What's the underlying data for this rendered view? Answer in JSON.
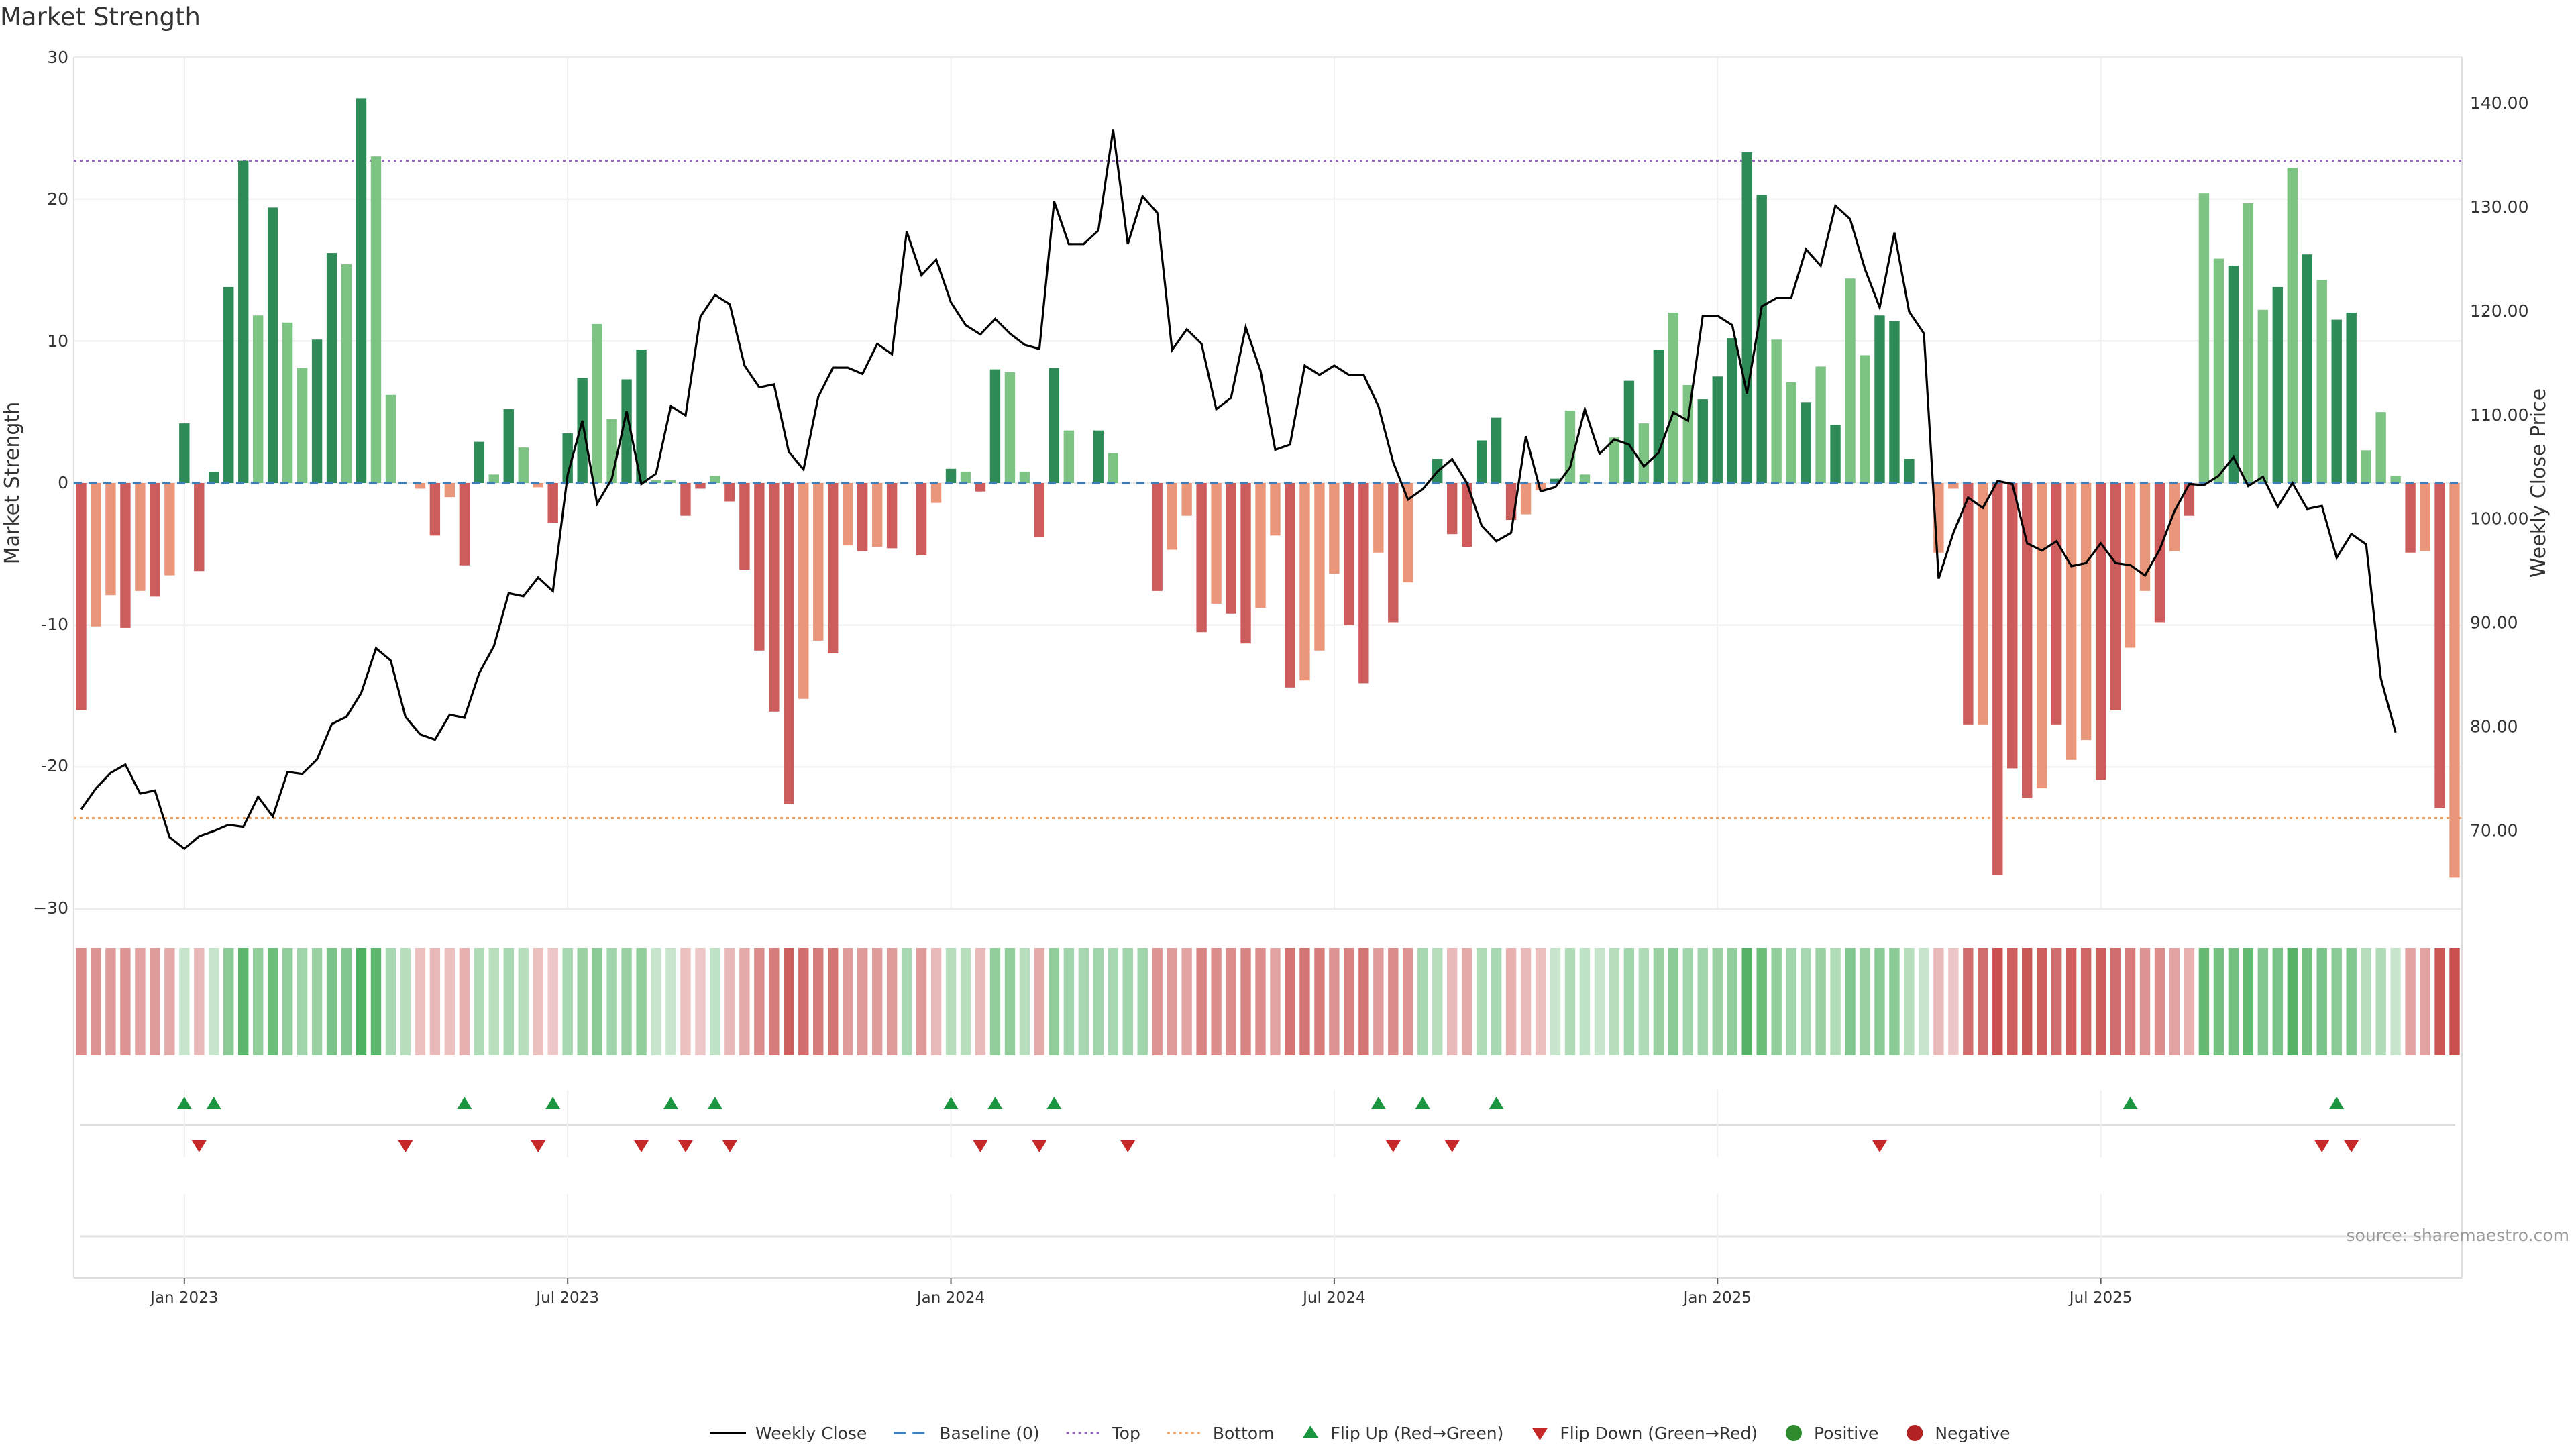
{
  "chart_data": {
    "type": "bar",
    "title": "Market Strength",
    "ylabel": "Market Strength",
    "y2label": "Weekly Close Price",
    "source": "source: sharemaestro.com",
    "ylim": [
      -30,
      30
    ],
    "y2lim": [
      62.4,
      144.4
    ],
    "yticks": [
      "30",
      "20",
      "10",
      "0",
      "−30"
    ],
    "yticks_neg": [
      "-10",
      "-20"
    ],
    "y2ticks": [
      "140.00",
      "130.00",
      "120.00",
      "110.00",
      "100.00",
      "90.00",
      "80.00",
      "70.00"
    ],
    "y2tick_values": [
      140,
      130,
      120,
      110,
      100,
      90,
      80,
      70
    ],
    "x_start_index_note_free": true,
    "x_ticks": [
      {
        "label": "Jan 2023",
        "index": 7
      },
      {
        "label": "Jul 2023",
        "index": 33
      },
      {
        "label": "Jan 2024",
        "index": 59
      },
      {
        "label": "Jul 2024",
        "index": 85
      },
      {
        "label": "Jan 2025",
        "index": 111
      },
      {
        "label": "Jul 2025",
        "index": 137
      }
    ],
    "top_line": 22.7,
    "bottom_line": -23.6,
    "grid": true,
    "legend_position": "bottom-center",
    "strength": [
      -16,
      -10.1,
      -7.9,
      -10.2,
      -7.6,
      -8,
      -6.5,
      4.2,
      -6.2,
      0.8,
      13.8,
      22.7,
      11.8,
      19.4,
      11.3,
      8.1,
      10.1,
      16.2,
      15.4,
      27.1,
      23,
      6.2,
      0,
      -0.4,
      -3.7,
      -1,
      -5.8,
      2.9,
      0.6,
      5.2,
      2.5,
      -0.3,
      -2.8,
      3.5,
      7.4,
      11.2,
      4.5,
      7.3,
      9.4,
      0.2,
      0.2,
      -2.3,
      -0.4,
      0.5,
      -1.3,
      -6.1,
      -11.8,
      -16.1,
      -22.6,
      -15.2,
      -11.1,
      -12,
      -4.4,
      -4.8,
      -4.5,
      -4.6,
      0,
      -5.1,
      -1.4,
      1,
      0.8,
      -0.6,
      8,
      7.8,
      0.8,
      -3.8,
      8.1,
      3.7,
      0,
      3.7,
      2.1,
      0,
      0,
      -7.6,
      -4.7,
      -2.3,
      -10.5,
      -8.5,
      -9.2,
      -11.3,
      -8.8,
      -3.7,
      -14.4,
      -13.9,
      -11.8,
      -6.4,
      -10,
      -14.1,
      -4.9,
      -9.8,
      -7,
      0,
      1.7,
      -3.6,
      -4.5,
      3,
      4.6,
      -2.6,
      -2.2,
      -0.5,
      0.3,
      5.1,
      0.6,
      0,
      3.2,
      7.2,
      4.2,
      9.4,
      12,
      6.9,
      5.9,
      7.5,
      10.2,
      23.3,
      20.3,
      10.1,
      7.1,
      5.7,
      8.2,
      4.1,
      14.4,
      9,
      11.8,
      11.4,
      1.7,
      0,
      -4.9,
      -0.4,
      -17,
      -17,
      -27.6,
      -20.1,
      -22.2,
      -21.5,
      -17,
      -19.5,
      -18.1,
      -20.9,
      -16,
      -11.6,
      -7.6,
      -9.8,
      -4.8,
      -2.3,
      20.4,
      15.8,
      15.3,
      19.7,
      12.2,
      13.8,
      22.2,
      16.1,
      14.3,
      11.5,
      12,
      2.3,
      5,
      0.5,
      -4.9,
      -4.8,
      -22.9,
      -27.8
    ],
    "bar_shades": [
      "dark",
      "light",
      "light",
      "dark",
      "light",
      "dark",
      "light",
      "dark",
      "dark",
      "dark",
      "dark",
      "dark",
      "light",
      "dark",
      "light",
      "light",
      "dark",
      "dark",
      "light",
      "dark",
      "light",
      "light",
      "light",
      "light",
      "dark",
      "light",
      "dark",
      "dark",
      "light",
      "dark",
      "light",
      "light",
      "dark",
      "dark",
      "dark",
      "light",
      "light",
      "dark",
      "dark",
      "light",
      "light",
      "dark",
      "dark",
      "light",
      "dark",
      "dark",
      "dark",
      "dark",
      "dark",
      "light",
      "light",
      "dark",
      "light",
      "dark",
      "light",
      "dark",
      "light",
      "dark",
      "light",
      "dark",
      "light",
      "dark",
      "dark",
      "light",
      "light",
      "dark",
      "dark",
      "light",
      "light",
      "dark",
      "light",
      "light",
      "light",
      "dark",
      "light",
      "light",
      "dark",
      "light",
      "dark",
      "dark",
      "light",
      "light",
      "dark",
      "light",
      "light",
      "light",
      "dark",
      "dark",
      "light",
      "dark",
      "light",
      "light",
      "dark",
      "dark",
      "dark",
      "dark",
      "dark",
      "dark",
      "light",
      "light",
      "dark",
      "light",
      "light",
      "dark",
      "light",
      "dark",
      "light",
      "dark",
      "light",
      "light",
      "dark",
      "dark",
      "dark",
      "dark",
      "dark",
      "light",
      "light",
      "dark",
      "light",
      "dark",
      "light",
      "light",
      "dark",
      "dark",
      "dark",
      "light",
      "light",
      "light",
      "dark",
      "light",
      "dark",
      "dark",
      "dark",
      "light",
      "dark",
      "light",
      "light",
      "dark",
      "dark",
      "light",
      "light",
      "dark",
      "light",
      "dark",
      "light",
      "light",
      "dark",
      "light",
      "light",
      "dark",
      "light",
      "dark",
      "light",
      "dark",
      "dark",
      "light",
      "light",
      "light",
      "dark",
      "light",
      "dark",
      "light",
      "dark",
      "dark",
      "dark",
      "dark"
    ],
    "heat_level": [
      0.6,
      0.55,
      0.5,
      0.55,
      0.45,
      0.5,
      0.4,
      0.2,
      0.3,
      0.2,
      0.6,
      0.9,
      0.55,
      0.8,
      0.55,
      0.45,
      0.5,
      0.7,
      0.65,
      1,
      0.9,
      0.4,
      0.3,
      0.25,
      0.3,
      0.25,
      0.35,
      0.35,
      0.3,
      0.4,
      0.3,
      0.25,
      0.2,
      0.4,
      0.5,
      0.6,
      0.45,
      0.5,
      0.55,
      0.2,
      0.2,
      0.25,
      0.2,
      0.25,
      0.3,
      0.4,
      0.6,
      0.7,
      0.9,
      0.8,
      0.7,
      0.75,
      0.5,
      0.5,
      0.5,
      0.5,
      0.4,
      0.5,
      0.3,
      0.3,
      0.3,
      0.3,
      0.55,
      0.55,
      0.3,
      0.4,
      0.55,
      0.45,
      0.4,
      0.45,
      0.4,
      0.45,
      0.45,
      0.55,
      0.5,
      0.45,
      0.65,
      0.6,
      0.6,
      0.65,
      0.6,
      0.45,
      0.75,
      0.75,
      0.7,
      0.55,
      0.65,
      0.75,
      0.5,
      0.6,
      0.55,
      0.4,
      0.3,
      0.3,
      0.4,
      0.35,
      0.4,
      0.35,
      0.3,
      0.25,
      0.2,
      0.35,
      0.25,
      0.2,
      0.3,
      0.45,
      0.35,
      0.5,
      0.6,
      0.45,
      0.45,
      0.5,
      0.55,
      0.95,
      0.8,
      0.55,
      0.45,
      0.4,
      0.5,
      0.35,
      0.65,
      0.5,
      0.6,
      0.6,
      0.3,
      0.2,
      0.3,
      0.2,
      0.8,
      0.8,
      1,
      0.9,
      0.95,
      0.9,
      0.8,
      0.9,
      0.85,
      0.9,
      0.8,
      0.7,
      0.55,
      0.6,
      0.45,
      0.35,
      0.85,
      0.75,
      0.75,
      0.85,
      0.65,
      0.7,
      0.95,
      0.75,
      0.7,
      0.6,
      0.65,
      0.3,
      0.35,
      0.2,
      0.45,
      0.45,
      0.95,
      1
    ],
    "weekly_close": [
      72,
      74,
      75.5,
      76.3,
      73.5,
      73.8,
      69.3,
      68.2,
      69.4,
      69.9,
      70.5,
      70.3,
      73.2,
      71.3,
      75.6,
      75.4,
      76.8,
      80.2,
      80.9,
      83.2,
      87.5,
      86.3,
      80.9,
      79.2,
      78.7,
      81.1,
      80.8,
      85.1,
      87.7,
      92.8,
      92.5,
      94.3,
      93,
      104.2,
      109.4,
      101.4,
      103.8,
      110.3,
      103.3,
      104.3,
      110.8,
      109.9,
      119.4,
      121.5,
      120.6,
      114.7,
      112.6,
      112.9,
      106.4,
      104.7,
      111.7,
      114.5,
      114.5,
      113.9,
      116.8,
      115.8,
      127.6,
      123.4,
      124.9,
      120.8,
      118.6,
      117.7,
      119.2,
      117.8,
      116.7,
      116.3,
      130.5,
      126.4,
      126.4,
      127.7,
      137.4,
      126.4,
      131,
      129.4,
      116.2,
      118.2,
      116.8,
      110.5,
      111.6,
      118.4,
      114.2,
      106.6,
      107.1,
      114.7,
      113.8,
      114.7,
      113.8,
      113.8,
      110.8,
      105.4,
      101.8,
      102.8,
      104.5,
      105.7,
      103.4,
      99.3,
      97.8,
      98.6,
      107.9,
      102.6,
      103,
      104.9,
      110.5,
      106.2,
      107.6,
      107.1,
      105,
      106.3,
      110.2,
      109.4,
      119.5,
      119.5,
      118.6,
      112,
      120.4,
      121.2,
      121.2,
      125.9,
      124.3,
      130.1,
      128.8,
      124,
      120.3,
      127.5,
      119.9,
      117.8,
      94.2,
      98.6,
      102,
      101,
      103.6,
      103.3,
      97.6,
      96.9,
      97.8,
      95.4,
      95.7,
      97.6,
      95.7,
      95.5,
      94.5,
      97,
      100.7,
      103.3,
      103.2,
      104.1,
      105.9,
      103.1,
      104,
      101.1,
      103.4,
      100.9,
      101.2,
      96.2,
      98.5,
      97.5,
      84.6,
      79.4
    ],
    "flip_up": [
      7,
      9,
      26,
      32,
      40,
      43,
      59,
      62,
      66,
      88,
      91,
      96,
      139,
      153
    ],
    "flip_down": [
      8,
      22,
      31,
      38,
      41,
      44,
      61,
      65,
      71,
      89,
      93,
      122,
      152,
      154
    ],
    "legend": [
      {
        "label": "Weekly Close",
        "symbol": "line",
        "color": "#000000"
      },
      {
        "label": "Baseline (0)",
        "symbol": "dash",
        "color": "#3f7fbf"
      },
      {
        "label": "Top",
        "symbol": "dot",
        "color": "#9467bd"
      },
      {
        "label": "Bottom",
        "symbol": "dot",
        "color": "#f4a261"
      },
      {
        "label": "Flip Up (Red→Green)",
        "symbol": "tri-up",
        "color": "#1a9641"
      },
      {
        "label": "Flip Down (Green→Red)",
        "symbol": "tri-down",
        "color": "#c62828"
      },
      {
        "label": "Positive",
        "symbol": "circle",
        "color": "#2e8b2e"
      },
      {
        "label": "Negative",
        "symbol": "circle",
        "color": "#b22222"
      }
    ],
    "colors": {
      "pos_dark": "#2e8b57",
      "pos_light": "#7dc383",
      "neg_dark": "#cd5c5c",
      "neg_light": "#e9967a",
      "heat_pos": "#4daf5f",
      "heat_neg": "#c8504f"
    }
  }
}
